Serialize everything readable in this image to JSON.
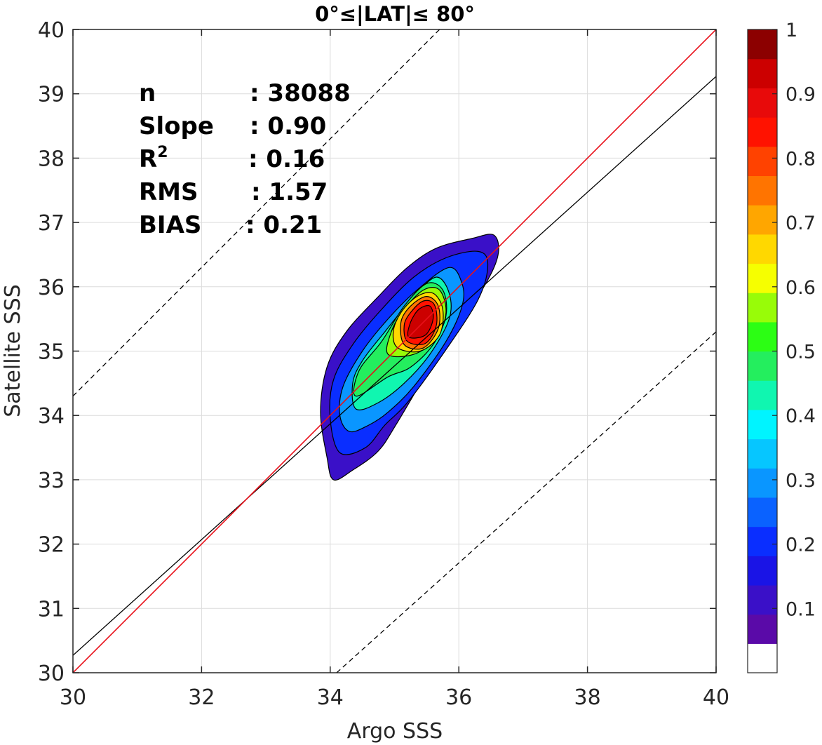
{
  "chart_data": {
    "type": "contour-density",
    "title": "0°≤|LAT|≤ 80°",
    "xlabel": "Argo SSS",
    "ylabel": "Satellite SSS",
    "xlim": [
      30,
      40
    ],
    "ylim": [
      30,
      40
    ],
    "xticks": [
      30,
      32,
      34,
      36,
      38,
      40
    ],
    "yticks": [
      30,
      31,
      32,
      33,
      34,
      35,
      36,
      37,
      38,
      39,
      40
    ],
    "grid": true,
    "stats": [
      {
        "label": "n",
        "sep": ": ",
        "value": "38088",
        "labelIsR2": false
      },
      {
        "label": "Slope",
        "sep": ": ",
        "value": "0.90",
        "labelIsR2": false
      },
      {
        "label": "R",
        "sup": "2",
        "sep": ": ",
        "value": "0.16",
        "labelIsR2": true
      },
      {
        "label": "RMS",
        "sep": ": ",
        "value": "1.57",
        "labelIsR2": false
      },
      {
        "label": "BIAS",
        "sep": ": ",
        "value": "0.21",
        "labelIsR2": false
      }
    ],
    "lines": {
      "one_to_one": {
        "color": "#e8101a",
        "x": [
          30,
          40
        ],
        "y": [
          30,
          40
        ]
      },
      "regression": {
        "color": "#000000",
        "x": [
          30,
          40
        ],
        "y": [
          30.27,
          39.27
        ]
      },
      "upper_bound": {
        "color": "#000000",
        "dash": true,
        "x": [
          30,
          36.3
        ],
        "y": [
          34.3,
          40.6
        ]
      },
      "lower_bound": {
        "color": "#000000",
        "dash": true,
        "x": [
          34.1,
          40
        ],
        "y": [
          30,
          35.3
        ]
      }
    },
    "density_center": [
      35.4,
      35.4
    ],
    "colorbar": {
      "ticks": [
        0.1,
        0.2,
        0.3,
        0.4,
        0.5,
        0.6,
        0.7,
        0.8,
        0.9,
        1
      ],
      "tick_labels": [
        "0.1",
        "0.2",
        "0.3",
        "0.4",
        "0.5",
        "0.6",
        "0.7",
        "0.8",
        "0.9",
        "1"
      ],
      "range": [
        0,
        1
      ],
      "colors": [
        "#ffffff",
        "#5a0aa8",
        "#3a10c8",
        "#1a14e6",
        "#0a2eff",
        "#0a62ff",
        "#0a96ff",
        "#06c6ff",
        "#00f4ff",
        "#10f6b0",
        "#24ee5e",
        "#2cfe14",
        "#98fc08",
        "#f6ff00",
        "#ffd800",
        "#ffa600",
        "#ff7400",
        "#ff4200",
        "#ff1200",
        "#e80a0a",
        "#cc0000",
        "#8c0000"
      ]
    },
    "contours": [
      {
        "level": 0.05,
        "color": "#3a10c8",
        "pts": [
          [
            34.05,
            33.0
          ],
          [
            34.35,
            33.15
          ],
          [
            34.75,
            33.45
          ],
          [
            35.05,
            33.9
          ],
          [
            35.65,
            34.9
          ],
          [
            36.3,
            35.85
          ],
          [
            36.6,
            36.45
          ],
          [
            36.55,
            36.8
          ],
          [
            36.2,
            36.75
          ],
          [
            35.65,
            36.6
          ],
          [
            35.2,
            36.3
          ],
          [
            34.75,
            35.85
          ],
          [
            34.25,
            35.3
          ],
          [
            33.95,
            34.75
          ],
          [
            33.85,
            34.05
          ],
          [
            33.95,
            33.35
          ]
        ]
      },
      {
        "level": 0.15,
        "color": "#0a2eff",
        "pts": [
          [
            34.15,
            33.42
          ],
          [
            34.55,
            33.5
          ],
          [
            34.85,
            33.85
          ],
          [
            35.2,
            34.2
          ],
          [
            35.75,
            34.95
          ],
          [
            36.3,
            35.8
          ],
          [
            36.45,
            36.35
          ],
          [
            36.3,
            36.55
          ],
          [
            35.8,
            36.45
          ],
          [
            35.3,
            36.15
          ],
          [
            34.8,
            35.65
          ],
          [
            34.35,
            35.1
          ],
          [
            34.05,
            34.55
          ],
          [
            34.0,
            33.95
          ]
        ]
      },
      {
        "level": 0.25,
        "color": "#0a96ff",
        "pts": [
          [
            34.3,
            33.75
          ],
          [
            34.6,
            33.85
          ],
          [
            34.9,
            34.05
          ],
          [
            35.3,
            34.45
          ],
          [
            35.8,
            35.15
          ],
          [
            36.05,
            35.7
          ],
          [
            36.05,
            36.05
          ],
          [
            35.85,
            36.3
          ],
          [
            35.35,
            35.95
          ],
          [
            34.9,
            35.5
          ],
          [
            34.5,
            35.0
          ],
          [
            34.2,
            34.45
          ],
          [
            34.15,
            34.0
          ]
        ]
      },
      {
        "level": 0.35,
        "color": "#10f6b0",
        "pts": [
          [
            34.4,
            34.1
          ],
          [
            34.75,
            34.2
          ],
          [
            35.15,
            34.5
          ],
          [
            35.55,
            34.95
          ],
          [
            35.85,
            35.5
          ],
          [
            35.85,
            35.9
          ],
          [
            35.65,
            36.15
          ],
          [
            35.3,
            35.85
          ],
          [
            34.85,
            35.3
          ],
          [
            34.5,
            34.85
          ],
          [
            34.35,
            34.5
          ]
        ]
      },
      {
        "level": 0.45,
        "color": "#24ee5e",
        "pts": [
          [
            34.4,
            34.3
          ],
          [
            34.9,
            34.6
          ],
          [
            35.25,
            34.75
          ],
          [
            35.6,
            35.1
          ],
          [
            35.8,
            35.55
          ],
          [
            35.75,
            35.95
          ],
          [
            35.5,
            36.05
          ],
          [
            35.15,
            35.7
          ],
          [
            34.8,
            35.15
          ],
          [
            34.45,
            34.7
          ]
        ]
      },
      {
        "level": 0.55,
        "color": "#98fc08",
        "pts": [
          [
            34.9,
            34.95
          ],
          [
            35.3,
            34.95
          ],
          [
            35.65,
            35.2
          ],
          [
            35.8,
            35.6
          ],
          [
            35.7,
            35.95
          ],
          [
            35.45,
            35.95
          ],
          [
            35.15,
            35.65
          ],
          [
            34.95,
            35.3
          ]
        ]
      },
      {
        "level": 0.65,
        "color": "#ffd800",
        "pts": [
          [
            35.05,
            35.05
          ],
          [
            35.4,
            35.0
          ],
          [
            35.7,
            35.25
          ],
          [
            35.75,
            35.65
          ],
          [
            35.6,
            35.9
          ],
          [
            35.35,
            35.85
          ],
          [
            35.1,
            35.6
          ],
          [
            34.98,
            35.3
          ]
        ]
      },
      {
        "level": 0.75,
        "color": "#ff7400",
        "pts": [
          [
            35.15,
            35.1
          ],
          [
            35.45,
            35.05
          ],
          [
            35.68,
            35.35
          ],
          [
            35.68,
            35.7
          ],
          [
            35.5,
            35.85
          ],
          [
            35.25,
            35.7
          ],
          [
            35.1,
            35.45
          ]
        ]
      },
      {
        "level": 0.85,
        "color": "#ff1200",
        "pts": [
          [
            35.2,
            35.15
          ],
          [
            35.48,
            35.12
          ],
          [
            35.65,
            35.4
          ],
          [
            35.62,
            35.72
          ],
          [
            35.45,
            35.78
          ],
          [
            35.25,
            35.6
          ],
          [
            35.15,
            35.4
          ]
        ]
      },
      {
        "level": 0.95,
        "color": "#cc0000",
        "pts": [
          [
            35.22,
            35.22
          ],
          [
            35.48,
            35.25
          ],
          [
            35.6,
            35.5
          ],
          [
            35.55,
            35.7
          ],
          [
            35.38,
            35.65
          ],
          [
            35.25,
            35.45
          ]
        ]
      }
    ]
  }
}
